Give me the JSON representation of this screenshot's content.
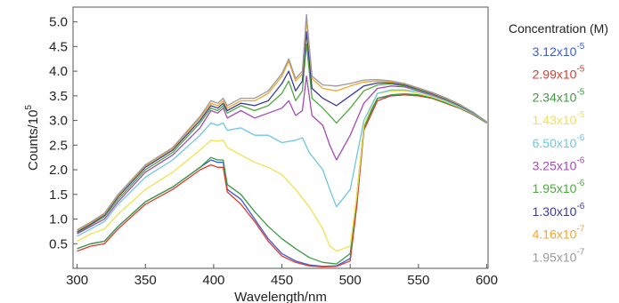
{
  "chart_data": {
    "type": "line",
    "xlabel": "Wavelength/nm",
    "ylabel_base": "Counts/10",
    "ylabel_exp": "5",
    "xlim": [
      297,
      601
    ],
    "ylim": [
      0,
      5.3
    ],
    "xticks": [
      300,
      350,
      400,
      450,
      500,
      550,
      600
    ],
    "xtick_labels": [
      "300",
      "350",
      "400",
      "450",
      "500",
      "550",
      "600"
    ],
    "yticks": [
      0.5,
      1.0,
      1.5,
      2.0,
      2.5,
      3.0,
      3.5,
      4.0,
      4.5,
      5.0
    ],
    "ytick_labels": [
      "0.5",
      "1.0",
      "1.5",
      "2.0",
      "2.5",
      "3.0",
      "3.5",
      "4.0",
      "4.5",
      "5.0"
    ],
    "grid": false,
    "legend_title": "Concentration (M)",
    "legend_placement": "right",
    "series": [
      {
        "name": "3.12x10-5",
        "mantissa": "3.12x10",
        "exp": "-5",
        "color": "#3a5bd9",
        "x": [
          300,
          310,
          320,
          330,
          350,
          370,
          390,
          398,
          403,
          407,
          410,
          420,
          430,
          440,
          450,
          460,
          470,
          480,
          490,
          500,
          505,
          510,
          520,
          530,
          540,
          550,
          560,
          570,
          580,
          590,
          600
        ],
        "y": [
          0.4,
          0.5,
          0.55,
          0.85,
          1.35,
          1.65,
          2.05,
          2.2,
          2.15,
          2.15,
          1.6,
          1.4,
          1.0,
          0.6,
          0.3,
          0.15,
          0.07,
          0.04,
          0.05,
          0.2,
          1.5,
          2.9,
          3.45,
          3.5,
          3.52,
          3.5,
          3.45,
          3.35,
          3.25,
          3.12,
          2.95
        ]
      },
      {
        "name": "2.99x10-5",
        "mantissa": "2.99x10",
        "exp": "-5",
        "color": "#e03a2f",
        "x": [
          300,
          310,
          320,
          330,
          350,
          370,
          390,
          398,
          403,
          407,
          410,
          420,
          430,
          440,
          450,
          460,
          470,
          480,
          490,
          500,
          505,
          510,
          520,
          530,
          540,
          550,
          560,
          570,
          580,
          590,
          600
        ],
        "y": [
          0.35,
          0.45,
          0.5,
          0.8,
          1.3,
          1.6,
          2.0,
          2.1,
          2.05,
          2.05,
          1.55,
          1.3,
          0.95,
          0.55,
          0.25,
          0.12,
          0.05,
          0.03,
          0.04,
          0.15,
          1.3,
          2.8,
          3.4,
          3.5,
          3.52,
          3.5,
          3.45,
          3.35,
          3.25,
          3.12,
          2.95
        ]
      },
      {
        "name": "2.34x10-5",
        "mantissa": "2.34x10",
        "exp": "-5",
        "color": "#3a9c3f",
        "x": [
          300,
          310,
          320,
          330,
          350,
          370,
          390,
          398,
          403,
          407,
          410,
          420,
          430,
          440,
          450,
          460,
          470,
          480,
          490,
          500,
          505,
          510,
          520,
          530,
          540,
          550,
          560,
          570,
          580,
          590,
          600
        ],
        "y": [
          0.4,
          0.5,
          0.55,
          0.85,
          1.35,
          1.65,
          2.05,
          2.25,
          2.2,
          2.2,
          1.7,
          1.5,
          1.15,
          0.85,
          0.6,
          0.4,
          0.22,
          0.12,
          0.09,
          0.3,
          1.5,
          2.85,
          3.45,
          3.52,
          3.54,
          3.52,
          3.46,
          3.36,
          3.26,
          3.13,
          2.95
        ]
      },
      {
        "name": "1.43x10-5",
        "mantissa": "1.43x10",
        "exp": "-5",
        "color": "#f2e24c",
        "x": [
          300,
          310,
          320,
          330,
          350,
          370,
          390,
          398,
          403,
          407,
          410,
          420,
          430,
          440,
          450,
          460,
          470,
          480,
          485,
          490,
          500,
          505,
          510,
          520,
          530,
          540,
          550,
          560,
          570,
          580,
          590,
          600
        ],
        "y": [
          0.55,
          0.7,
          0.8,
          1.1,
          1.6,
          1.95,
          2.4,
          2.6,
          2.58,
          2.6,
          2.45,
          2.3,
          2.15,
          2.05,
          1.9,
          1.6,
          1.25,
          0.8,
          0.45,
          0.35,
          0.45,
          1.5,
          2.9,
          3.55,
          3.6,
          3.6,
          3.55,
          3.48,
          3.38,
          3.27,
          3.14,
          2.96
        ]
      },
      {
        "name": "6.50x10-6",
        "mantissa": "6.50x10",
        "exp": "-6",
        "color": "#6cc8df",
        "x": [
          300,
          310,
          320,
          330,
          350,
          370,
          390,
          398,
          403,
          407,
          410,
          420,
          430,
          440,
          450,
          460,
          465,
          470,
          480,
          485,
          490,
          500,
          510,
          520,
          530,
          540,
          550,
          560,
          570,
          580,
          590,
          600
        ],
        "y": [
          0.65,
          0.8,
          0.95,
          1.3,
          1.85,
          2.2,
          2.7,
          2.95,
          2.9,
          2.95,
          2.8,
          2.85,
          2.7,
          2.7,
          2.55,
          2.6,
          2.65,
          2.35,
          2.0,
          1.6,
          1.25,
          1.6,
          3.0,
          3.55,
          3.62,
          3.62,
          3.58,
          3.5,
          3.4,
          3.28,
          3.15,
          2.96
        ]
      },
      {
        "name": "3.25x10-6",
        "mantissa": "3.25x10",
        "exp": "-6",
        "color": "#a548b8",
        "x": [
          300,
          310,
          320,
          330,
          350,
          370,
          390,
          398,
          403,
          407,
          410,
          420,
          430,
          440,
          450,
          455,
          460,
          465,
          468,
          472,
          480,
          485,
          490,
          500,
          510,
          520,
          530,
          540,
          550,
          560,
          570,
          580,
          590,
          600
        ],
        "y": [
          0.7,
          0.85,
          1.0,
          1.35,
          1.95,
          2.3,
          2.85,
          3.2,
          3.15,
          3.25,
          3.05,
          3.2,
          3.05,
          3.15,
          3.25,
          3.4,
          3.1,
          3.2,
          3.9,
          3.1,
          2.9,
          2.5,
          2.2,
          2.7,
          3.35,
          3.65,
          3.7,
          3.68,
          3.6,
          3.52,
          3.42,
          3.3,
          3.16,
          2.97
        ]
      },
      {
        "name": "1.95x10-6",
        "mantissa": "1.95x10",
        "exp": "-6",
        "color": "#4daa3c",
        "x": [
          300,
          310,
          320,
          330,
          350,
          370,
          390,
          398,
          403,
          407,
          410,
          420,
          430,
          440,
          450,
          455,
          460,
          465,
          468,
          472,
          480,
          490,
          500,
          510,
          520,
          530,
          540,
          550,
          560,
          570,
          580,
          590,
          600
        ],
        "y": [
          0.72,
          0.88,
          1.05,
          1.4,
          2.0,
          2.35,
          2.95,
          3.25,
          3.2,
          3.3,
          3.15,
          3.3,
          3.2,
          3.3,
          3.55,
          3.8,
          3.4,
          3.6,
          4.55,
          3.45,
          3.25,
          2.95,
          3.25,
          3.6,
          3.72,
          3.74,
          3.7,
          3.62,
          3.54,
          3.43,
          3.3,
          3.16,
          2.97
        ]
      },
      {
        "name": "1.30x10-6",
        "mantissa": "1.30x10",
        "exp": "-6",
        "color": "#3a3a9c",
        "x": [
          300,
          310,
          320,
          330,
          350,
          370,
          390,
          398,
          403,
          407,
          410,
          420,
          430,
          440,
          450,
          455,
          460,
          465,
          468,
          472,
          480,
          490,
          500,
          510,
          520,
          530,
          540,
          550,
          560,
          570,
          580,
          590,
          600
        ],
        "y": [
          0.74,
          0.9,
          1.08,
          1.45,
          2.05,
          2.4,
          3.0,
          3.3,
          3.25,
          3.35,
          3.2,
          3.35,
          3.3,
          3.4,
          3.75,
          4.0,
          3.6,
          3.8,
          4.8,
          3.65,
          3.45,
          3.3,
          3.5,
          3.7,
          3.76,
          3.76,
          3.72,
          3.64,
          3.55,
          3.44,
          3.31,
          3.16,
          2.97
        ]
      },
      {
        "name": "4.16x10-7",
        "mantissa": "4.16x10",
        "exp": "-7",
        "color": "#f5a623",
        "x": [
          300,
          310,
          320,
          330,
          350,
          370,
          390,
          398,
          403,
          407,
          410,
          420,
          430,
          440,
          450,
          455,
          460,
          465,
          468,
          472,
          480,
          490,
          500,
          510,
          520,
          530,
          540,
          550,
          560,
          570,
          580,
          590,
          600
        ],
        "y": [
          0.76,
          0.92,
          1.1,
          1.48,
          2.08,
          2.43,
          3.05,
          3.35,
          3.3,
          3.4,
          3.25,
          3.4,
          3.4,
          3.55,
          3.9,
          4.2,
          3.8,
          3.95,
          5.05,
          3.85,
          3.65,
          3.6,
          3.7,
          3.78,
          3.8,
          3.78,
          3.74,
          3.65,
          3.56,
          3.45,
          3.32,
          3.17,
          2.97
        ]
      },
      {
        "name": "1.95x10-7",
        "mantissa": "1.95x10",
        "exp": "-7",
        "color": "#9a9a9a",
        "x": [
          300,
          310,
          320,
          330,
          350,
          370,
          390,
          398,
          403,
          407,
          410,
          420,
          430,
          440,
          450,
          455,
          460,
          465,
          468,
          472,
          480,
          490,
          500,
          510,
          520,
          530,
          540,
          550,
          560,
          570,
          580,
          590,
          600
        ],
        "y": [
          0.78,
          0.94,
          1.12,
          1.5,
          2.1,
          2.45,
          3.08,
          3.4,
          3.35,
          3.45,
          3.3,
          3.45,
          3.45,
          3.6,
          3.95,
          4.25,
          3.85,
          4.0,
          5.15,
          3.9,
          3.72,
          3.7,
          3.75,
          3.82,
          3.83,
          3.8,
          3.75,
          3.66,
          3.57,
          3.46,
          3.33,
          3.17,
          2.97
        ]
      }
    ]
  }
}
